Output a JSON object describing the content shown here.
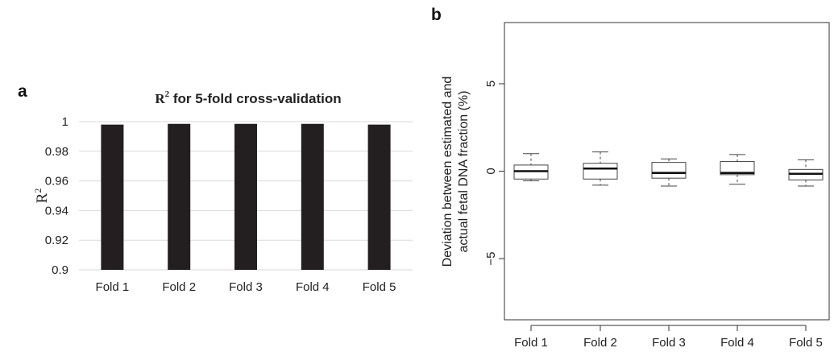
{
  "chart_data": [
    {
      "panel": "a",
      "type": "bar",
      "title_prefix": "R",
      "title_superscript": "2",
      "title_suffix": " for 5-fold cross-validation",
      "ylabel": "R",
      "ylabel_superscript": "2",
      "categories": [
        "Fold 1",
        "Fold 2",
        "Fold 3",
        "Fold 4",
        "Fold 5"
      ],
      "values": [
        0.998,
        0.9985,
        0.9985,
        0.9985,
        0.998
      ],
      "ylim": [
        0.9,
        1.0
      ],
      "yticks": [
        0.9,
        0.92,
        0.94,
        0.96,
        0.98,
        1
      ],
      "ytick_labels": [
        "0.9",
        "0.92",
        "0.94",
        "0.96",
        "0.98",
        "1"
      ],
      "grid": true,
      "bar_color": "#231f20"
    },
    {
      "panel": "b",
      "type": "box",
      "ylabel_line1": "Deviation between estimated and",
      "ylabel_line2": "actual fetal DNA fraction  (%)",
      "categories": [
        "Fold 1",
        "Fold 2",
        "Fold 3",
        "Fold 4",
        "Fold 5"
      ],
      "ylim": [
        -8.5,
        8.5
      ],
      "yticks": [
        -5,
        0,
        5
      ],
      "ytick_labels": [
        "−5",
        "0",
        "5"
      ],
      "grid": false,
      "boxes": [
        {
          "whisker_low": -0.55,
          "q1": -0.45,
          "median": 0.0,
          "q3": 0.35,
          "whisker_high": 1.0
        },
        {
          "whisker_low": -0.8,
          "q1": -0.45,
          "median": 0.15,
          "q3": 0.45,
          "whisker_high": 1.1
        },
        {
          "whisker_low": -0.85,
          "q1": -0.4,
          "median": -0.1,
          "q3": 0.5,
          "whisker_high": 0.7
        },
        {
          "whisker_low": -0.75,
          "q1": -0.2,
          "median": -0.1,
          "q3": 0.55,
          "whisker_high": 0.95
        },
        {
          "whisker_low": -0.85,
          "q1": -0.5,
          "median": -0.15,
          "q3": 0.1,
          "whisker_high": 0.65
        }
      ]
    }
  ]
}
